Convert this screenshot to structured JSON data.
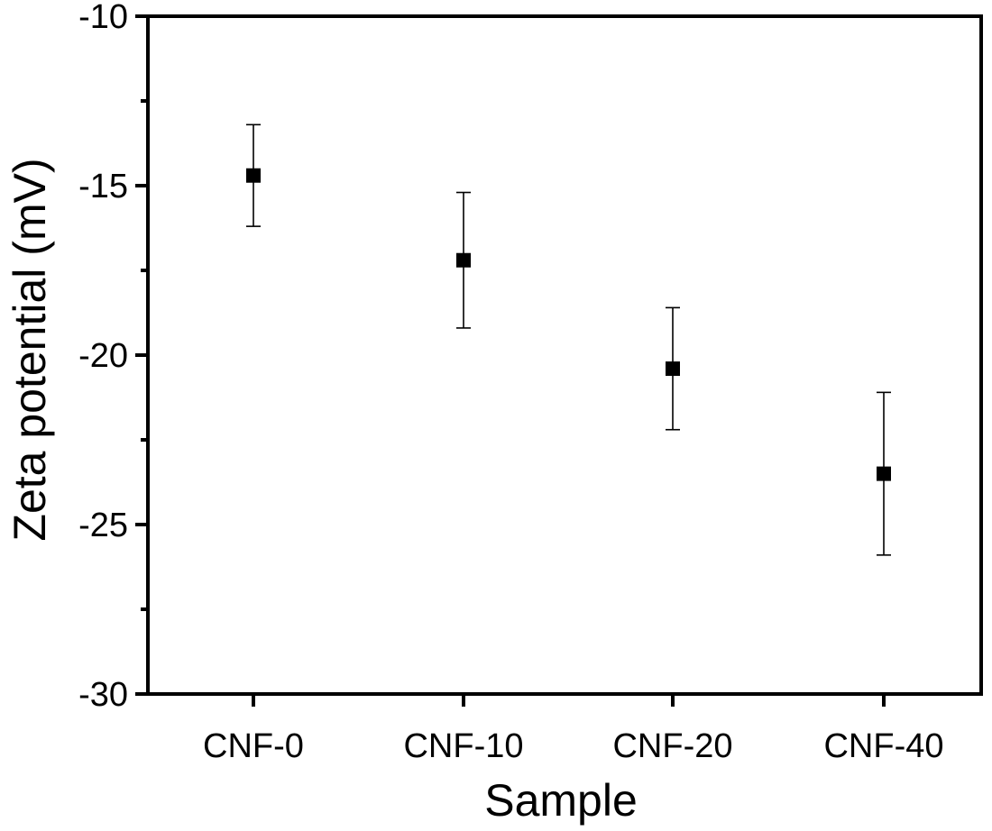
{
  "chart_data": {
    "type": "scatter",
    "title": "",
    "xlabel": "Sample",
    "ylabel": "Zeta potential (mV)",
    "categories": [
      "CNF-0",
      "CNF-10",
      "CNF-20",
      "CNF-40"
    ],
    "series": [
      {
        "values": [
          -14.7,
          -17.2,
          -20.4,
          -23.5
        ],
        "error_low": [
          -16.2,
          -19.2,
          -22.2,
          -25.9
        ],
        "error_high": [
          -13.2,
          -15.2,
          -18.6,
          -21.1
        ],
        "marker": "square",
        "color": "#000000"
      }
    ],
    "ylim": [
      -30,
      -10
    ],
    "yticks": [
      -30,
      -25,
      -20,
      -15,
      -10
    ],
    "ytick_labels": [
      "-30",
      "-25",
      "-20",
      "-15",
      "-10"
    ],
    "minor_yticks": [
      -27.5,
      -22.5,
      -17.5,
      -12.5
    ],
    "grid": false,
    "legend": "none"
  }
}
